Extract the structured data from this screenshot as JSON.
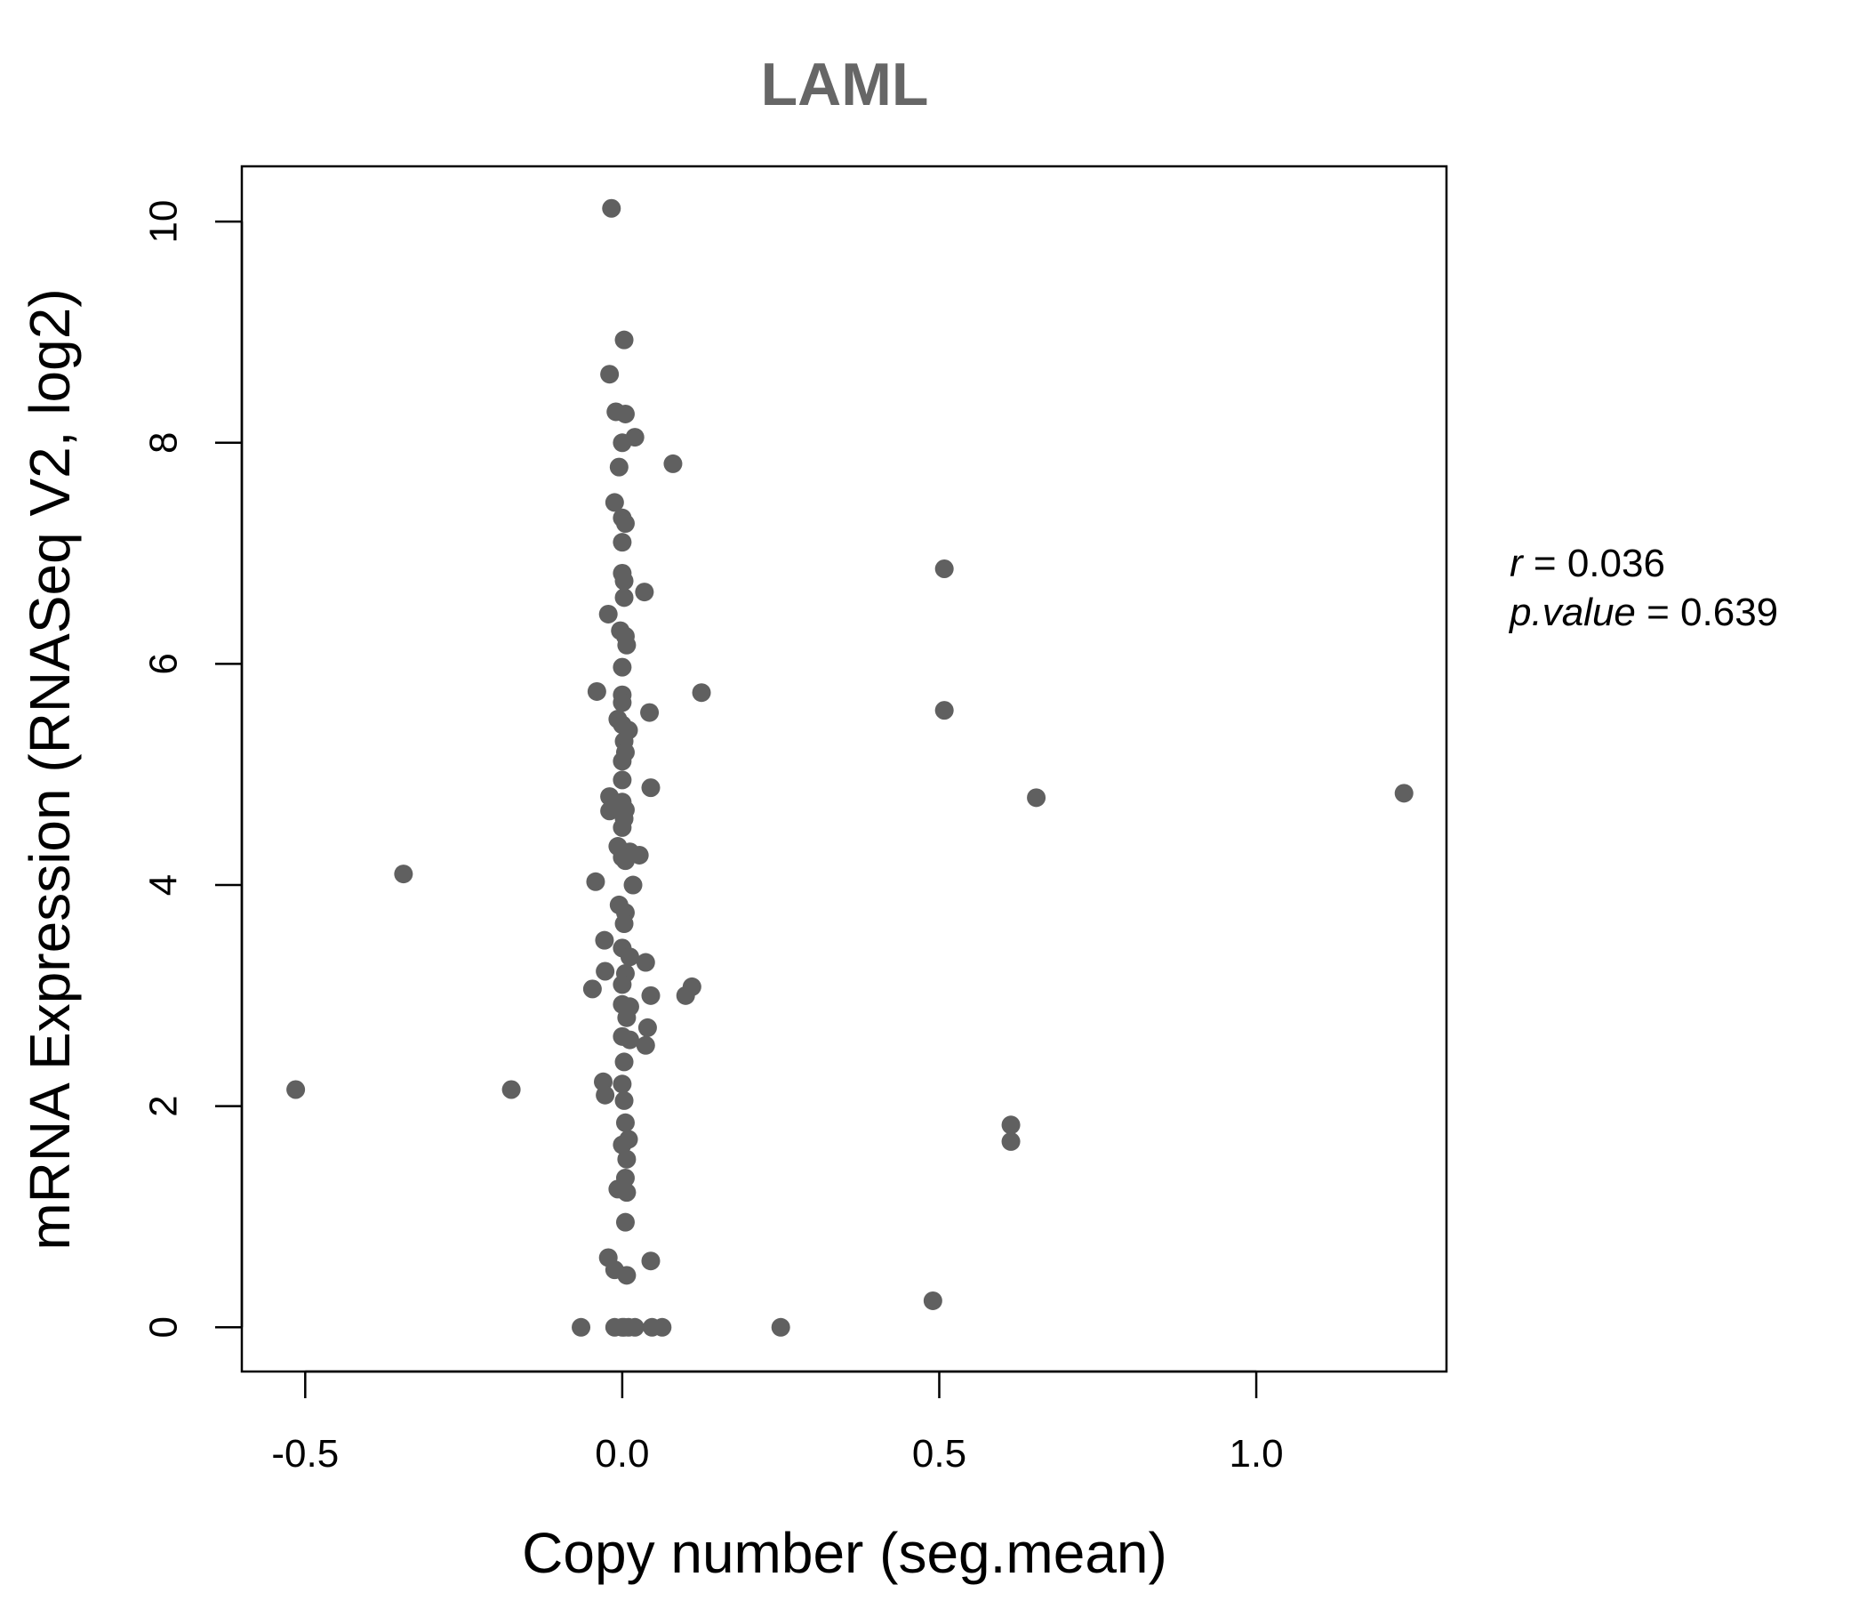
{
  "chart_data": {
    "type": "scatter",
    "title": "LAML",
    "xlabel": "Copy number (seg.mean)",
    "ylabel": "mRNA Expression (RNASeq V2, log2)",
    "xlim": [
      -0.6,
      1.3
    ],
    "ylim": [
      -0.4,
      10.5
    ],
    "x_ticks": [
      -0.5,
      0.0,
      0.5,
      1.0
    ],
    "x_tick_labels": [
      "-0.5",
      "0.0",
      "0.5",
      "1.0"
    ],
    "y_ticks": [
      0,
      2,
      4,
      6,
      8,
      10
    ],
    "y_tick_labels": [
      "0",
      "2",
      "4",
      "6",
      "8",
      "10"
    ],
    "grid": false,
    "point_color": "#606060",
    "stats": {
      "r_label": "r",
      "r_value": "0.036",
      "p_label": "p.value",
      "p_value": "0.639"
    },
    "points": [
      [
        -0.017,
        10.12
      ],
      [
        0.003,
        8.93
      ],
      [
        -0.02,
        8.62
      ],
      [
        -0.01,
        8.28
      ],
      [
        0.005,
        8.26
      ],
      [
        0.02,
        8.05
      ],
      [
        0.0,
        8.0
      ],
      [
        0.08,
        7.81
      ],
      [
        -0.005,
        7.78
      ],
      [
        -0.012,
        7.46
      ],
      [
        0.0,
        7.32
      ],
      [
        0.005,
        7.27
      ],
      [
        0.0,
        7.1
      ],
      [
        0.0,
        6.82
      ],
      [
        0.003,
        6.75
      ],
      [
        0.035,
        6.65
      ],
      [
        0.003,
        6.6
      ],
      [
        -0.022,
        6.45
      ],
      [
        -0.003,
        6.3
      ],
      [
        0.005,
        6.25
      ],
      [
        0.007,
        6.17
      ],
      [
        0.0,
        5.97
      ],
      [
        -0.04,
        5.75
      ],
      [
        0.125,
        5.74
      ],
      [
        0.0,
        5.72
      ],
      [
        0.0,
        5.65
      ],
      [
        0.043,
        5.56
      ],
      [
        -0.007,
        5.5
      ],
      [
        0.0,
        5.45
      ],
      [
        0.01,
        5.4
      ],
      [
        0.003,
        5.3
      ],
      [
        0.005,
        5.2
      ],
      [
        0.0,
        5.12
      ],
      [
        0.045,
        4.88
      ],
      [
        0.0,
        4.95
      ],
      [
        -0.02,
        4.8
      ],
      [
        0.0,
        4.75
      ],
      [
        0.005,
        4.68
      ],
      [
        -0.02,
        4.67
      ],
      [
        0.003,
        4.6
      ],
      [
        0.0,
        4.52
      ],
      [
        -0.007,
        4.35
      ],
      [
        0.0,
        4.3
      ],
      [
        0.012,
        4.3
      ],
      [
        0.027,
        4.27
      ],
      [
        0.005,
        4.22
      ],
      [
        0.0,
        4.25
      ],
      [
        -0.042,
        4.03
      ],
      [
        0.017,
        4.0
      ],
      [
        -0.005,
        3.82
      ],
      [
        0.005,
        3.75
      ],
      [
        0.003,
        3.65
      ],
      [
        -0.028,
        3.5
      ],
      [
        0.0,
        3.43
      ],
      [
        0.012,
        3.35
      ],
      [
        0.037,
        3.3
      ],
      [
        -0.027,
        3.22
      ],
      [
        0.005,
        3.2
      ],
      [
        0.0,
        3.1
      ],
      [
        0.11,
        3.08
      ],
      [
        -0.047,
        3.06
      ],
      [
        0.1,
        3.0
      ],
      [
        0.045,
        3.0
      ],
      [
        0.0,
        2.92
      ],
      [
        0.012,
        2.9
      ],
      [
        0.007,
        2.8
      ],
      [
        0.04,
        2.71
      ],
      [
        0.0,
        2.63
      ],
      [
        0.012,
        2.6
      ],
      [
        0.037,
        2.55
      ],
      [
        0.003,
        2.4
      ],
      [
        -0.03,
        2.22
      ],
      [
        0.0,
        2.2
      ],
      [
        -0.027,
        2.1
      ],
      [
        0.003,
        2.05
      ],
      [
        0.005,
        1.85
      ],
      [
        0.01,
        1.7
      ],
      [
        0.0,
        1.65
      ],
      [
        0.007,
        1.52
      ],
      [
        0.005,
        1.35
      ],
      [
        -0.007,
        1.25
      ],
      [
        0.007,
        1.22
      ],
      [
        0.005,
        0.95
      ],
      [
        -0.022,
        0.63
      ],
      [
        -0.012,
        0.52
      ],
      [
        0.045,
        0.6
      ],
      [
        0.007,
        0.47
      ],
      [
        0.0,
        0.0
      ],
      [
        -0.012,
        0.0
      ],
      [
        0.003,
        0.0
      ],
      [
        0.01,
        0.0
      ],
      [
        0.02,
        0.0
      ],
      [
        0.047,
        0.0
      ],
      [
        0.063,
        0.0
      ],
      [
        -0.065,
        0.0
      ],
      [
        -0.515,
        2.15
      ],
      [
        -0.345,
        4.1
      ],
      [
        -0.175,
        2.15
      ],
      [
        0.25,
        0.0
      ],
      [
        0.49,
        0.24
      ],
      [
        0.508,
        6.86
      ],
      [
        0.508,
        5.58
      ],
      [
        0.613,
        1.83
      ],
      [
        0.613,
        1.68
      ],
      [
        0.653,
        4.79
      ],
      [
        1.233,
        4.83
      ]
    ]
  }
}
